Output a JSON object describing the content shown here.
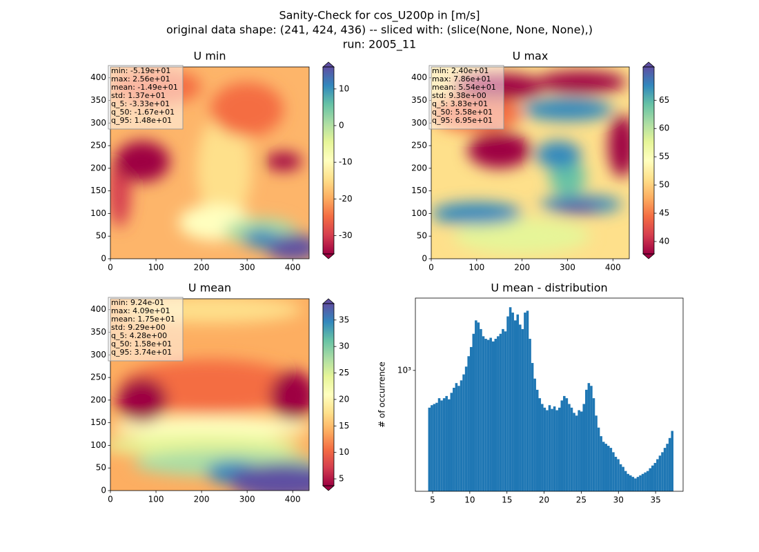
{
  "suptitle": [
    "Sanity-Check for cos_U200p in [m/s]",
    "original data shape: (241, 424, 436) -- sliced with: (slice(None, None, None),)",
    "run: 2005_11"
  ],
  "chart_data": [
    {
      "type": "heatmap",
      "title": "U min",
      "xlim": [
        0,
        436
      ],
      "ylim": [
        0,
        424
      ],
      "xticks": [
        0,
        100,
        200,
        300,
        400
      ],
      "yticks": [
        0,
        50,
        100,
        150,
        200,
        250,
        300,
        350,
        400
      ],
      "stats": [
        "min: -5.19e+01",
        "max: 2.56e+01",
        "mean: -1.49e+01",
        "std: 1.37e+01",
        "q_5: -3.33e+01",
        "q_50: -1.67e+01",
        "q_95: 1.48e+01"
      ],
      "colormap": "Spectral",
      "colorbar": {
        "lim": [
          -35,
          16
        ],
        "ticks": [
          -30,
          -20,
          -10,
          0,
          10
        ]
      }
    },
    {
      "type": "heatmap",
      "title": "U max",
      "xlim": [
        0,
        436
      ],
      "ylim": [
        0,
        424
      ],
      "xticks": [
        0,
        100,
        200,
        300,
        400
      ],
      "yticks": [
        0,
        50,
        100,
        150,
        200,
        250,
        300,
        350,
        400
      ],
      "stats": [
        "min: 2.40e+01",
        "max: 7.86e+01",
        "mean: 5.54e+01",
        "std: 9.38e+00",
        "q_5: 3.83e+01",
        "q_50: 5.58e+01",
        "q_95: 6.95e+01"
      ],
      "colormap": "Spectral",
      "colorbar": {
        "lim": [
          37.8,
          70.9
        ],
        "ticks": [
          40,
          45,
          50,
          55,
          60,
          65
        ]
      }
    },
    {
      "type": "heatmap",
      "title": "U mean",
      "xlim": [
        0,
        436
      ],
      "ylim": [
        0,
        424
      ],
      "xticks": [
        0,
        100,
        200,
        300,
        400
      ],
      "yticks": [
        0,
        50,
        100,
        150,
        200,
        250,
        300,
        350,
        400
      ],
      "stats": [
        "min: 9.24e-01",
        "max: 4.09e+01",
        "mean: 1.75e+01",
        "std: 9.29e+00",
        "q_5: 4.28e+00",
        "q_50: 1.58e+01",
        "q_95: 3.74e+01"
      ],
      "colormap": "Spectral",
      "colorbar": {
        "lim": [
          3.7,
          38.1
        ],
        "ticks": [
          5,
          10,
          15,
          20,
          25,
          30,
          35
        ]
      }
    },
    {
      "type": "histogram",
      "title": "U mean - distribution",
      "ylabel": "# of occurrence",
      "color": "#1f77b4",
      "yscale": "log",
      "xlim": [
        2.68,
        38.7
      ],
      "xticks": [
        5,
        10,
        15,
        20,
        25,
        30,
        35
      ],
      "ylim": [
        212,
        2530
      ],
      "yticks": [
        {
          "value": 1000,
          "label": "10³"
        }
      ],
      "bins": [
        4.4,
        4.73,
        5.06,
        5.39,
        5.72,
        6.05,
        6.38,
        6.71,
        7.04,
        7.37,
        7.7,
        8.03,
        8.36,
        8.69,
        9.02,
        9.35,
        9.68,
        10.01,
        10.34,
        10.67,
        11.0,
        11.33,
        11.66,
        11.99,
        12.32,
        12.65,
        12.98,
        13.31,
        13.64,
        13.97,
        14.3,
        14.63,
        14.96,
        15.29,
        15.62,
        15.95,
        16.28,
        16.61,
        16.94,
        17.27,
        17.6,
        17.93,
        18.26,
        18.59,
        18.92,
        19.25,
        19.58,
        19.91,
        20.24,
        20.57,
        20.9,
        21.23,
        21.56,
        21.89,
        22.22,
        22.55,
        22.88,
        23.21,
        23.54,
        23.87,
        24.2,
        24.53,
        24.86,
        25.19,
        25.52,
        25.85,
        26.18,
        26.51,
        26.84,
        27.17,
        27.5,
        27.83,
        28.16,
        28.49,
        28.82,
        29.15,
        29.48,
        29.81,
        30.14,
        30.47,
        30.8,
        31.13,
        31.46,
        31.79,
        32.12,
        32.45,
        32.78,
        33.11,
        33.44,
        33.77,
        34.1,
        34.43,
        34.76,
        35.09,
        35.42,
        35.75,
        36.08,
        36.41,
        36.74,
        37.07,
        37.4
      ],
      "counts": [
        620,
        640,
        650,
        660,
        700,
        680,
        700,
        720,
        690,
        750,
        800,
        850,
        820,
        880,
        950,
        1050,
        1200,
        1350,
        1600,
        1900,
        1850,
        1700,
        1550,
        1500,
        1480,
        1520,
        1450,
        1500,
        1550,
        1600,
        1700,
        1650,
        2000,
        2250,
        2100,
        1900,
        2050,
        1800,
        1700,
        2100,
        2150,
        1500,
        1100,
        900,
        780,
        700,
        650,
        620,
        600,
        640,
        610,
        630,
        600,
        620,
        680,
        720,
        700,
        650,
        620,
        580,
        560,
        600,
        590,
        650,
        780,
        850,
        820,
        700,
        560,
        480,
        430,
        400,
        390,
        380,
        370,
        350,
        330,
        320,
        300,
        290,
        275,
        265,
        260,
        255,
        250,
        255,
        260,
        265,
        270,
        275,
        285,
        295,
        305,
        320,
        335,
        350,
        370,
        390,
        420,
        460
      ]
    }
  ]
}
